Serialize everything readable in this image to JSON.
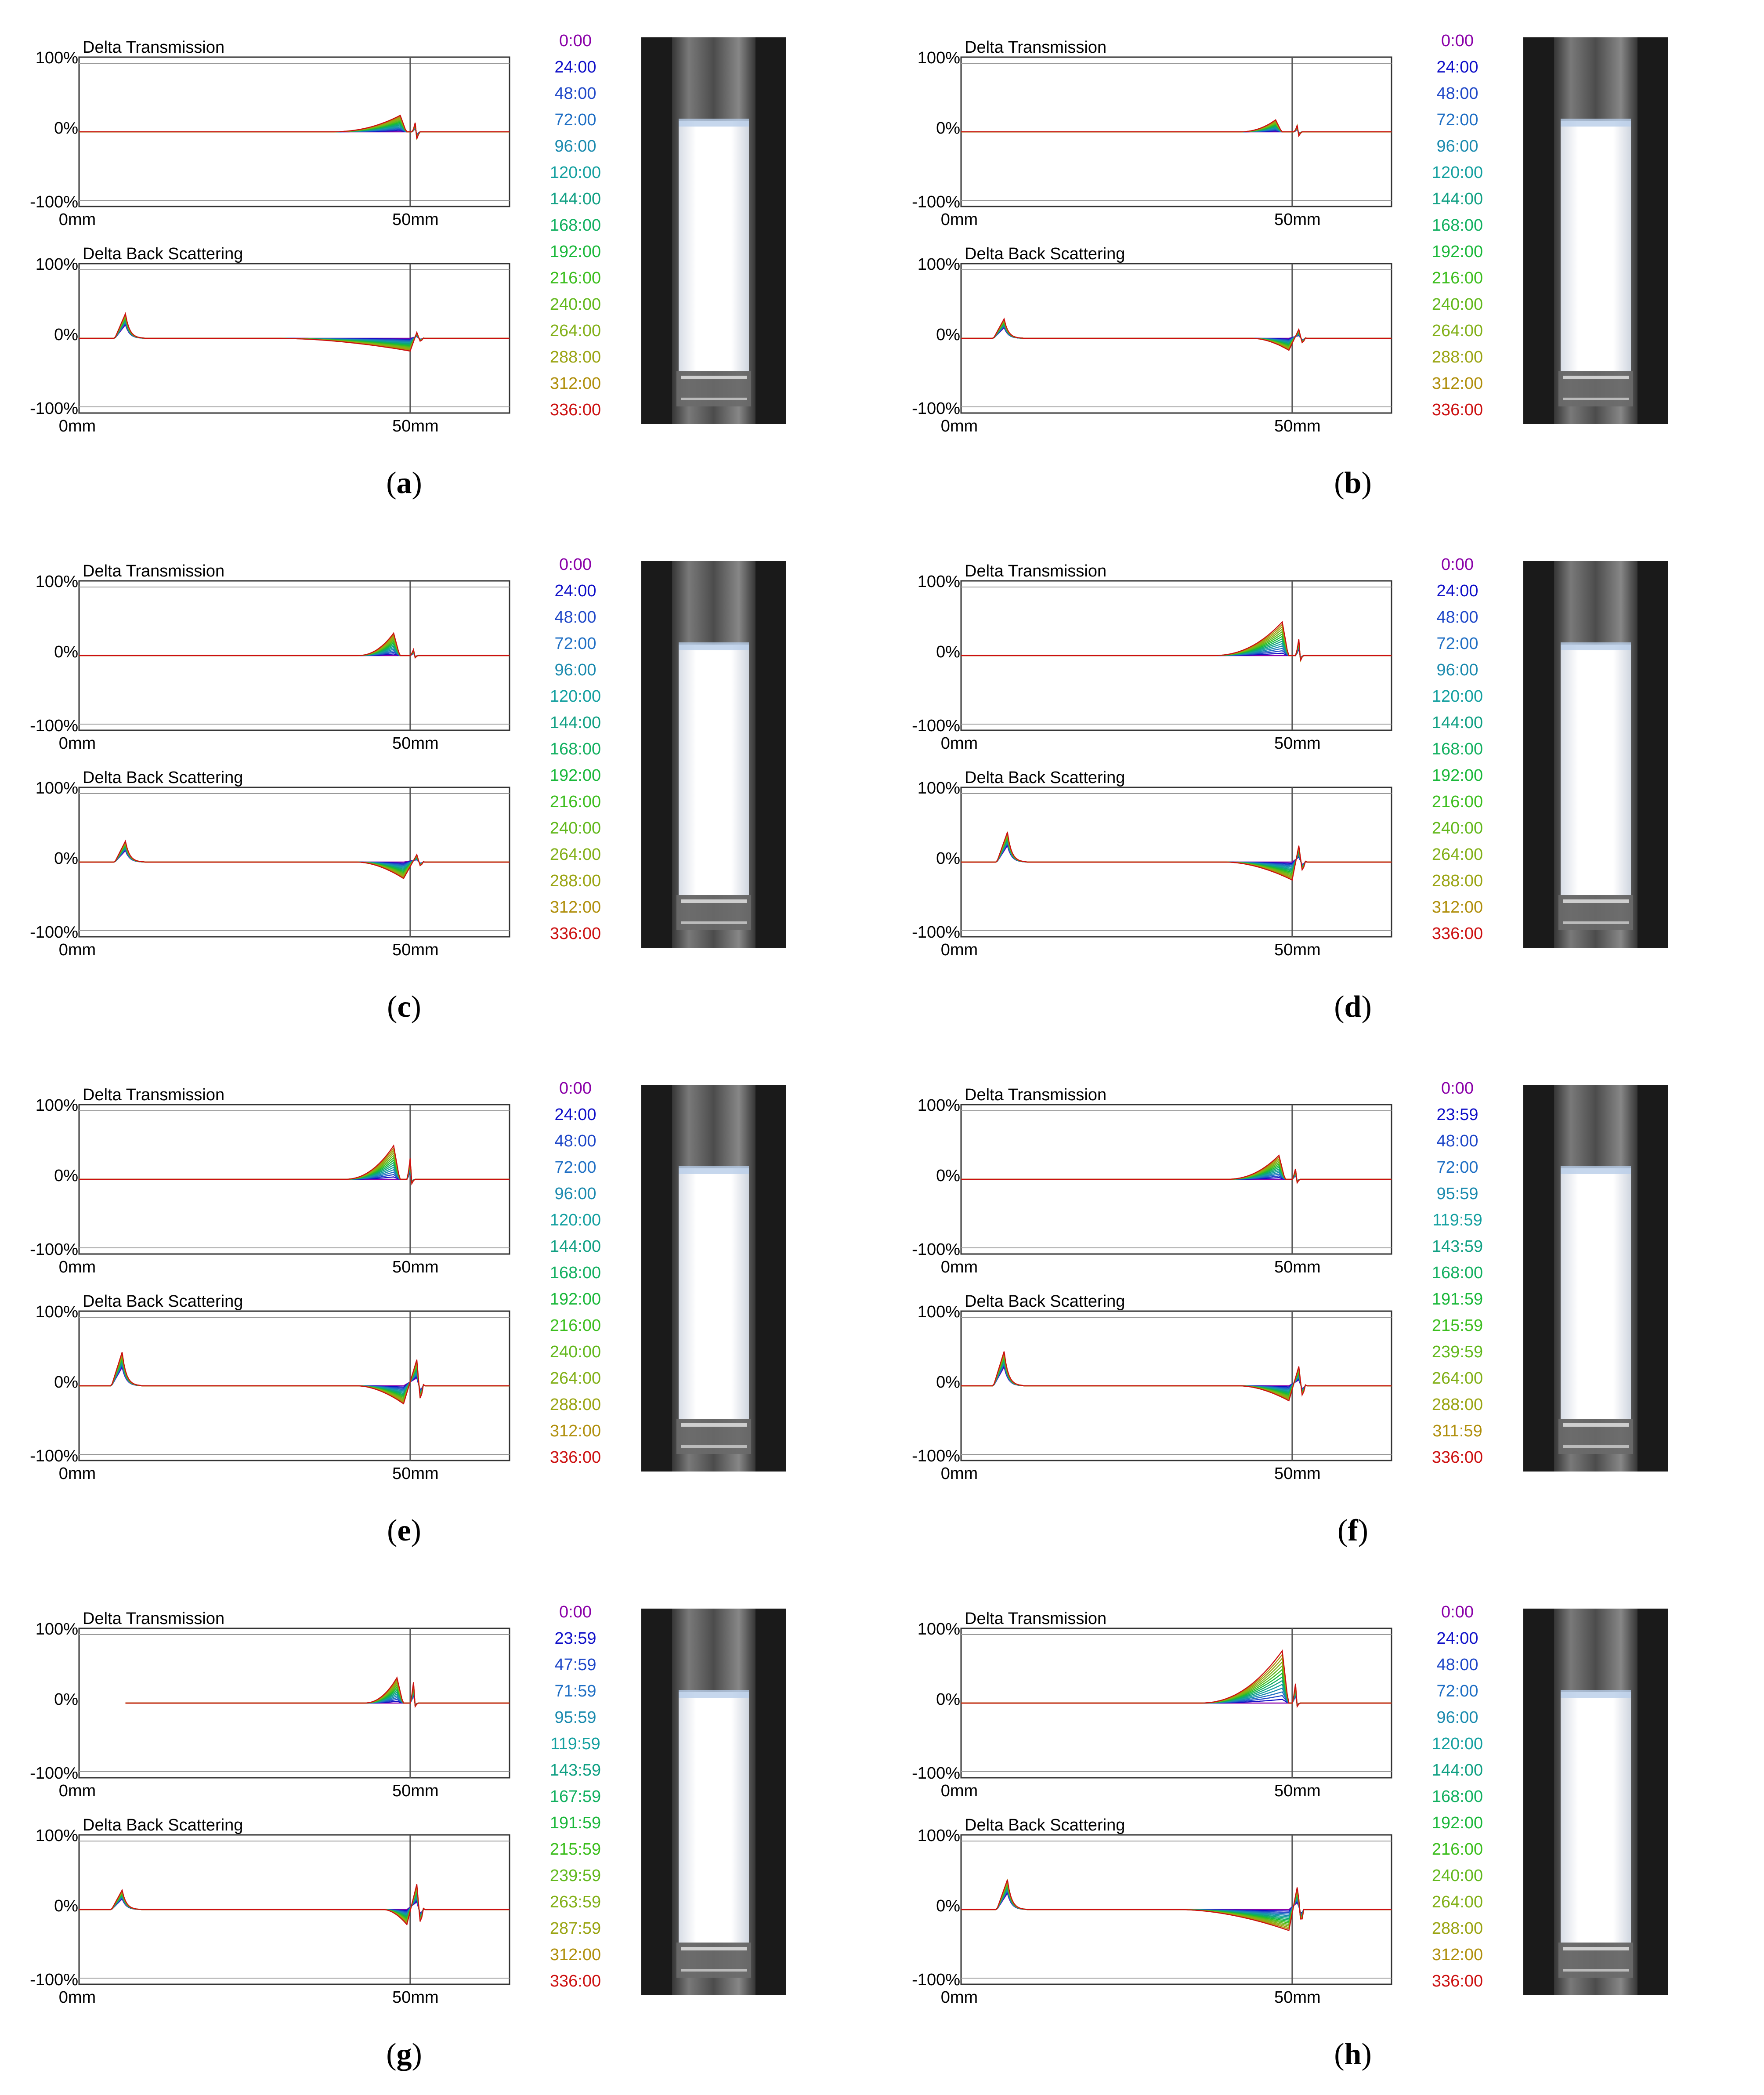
{
  "axes_text": {
    "transmission_title": "Delta Transmission",
    "backscatter_title": "Delta Back Scattering",
    "y_top": "100%",
    "y_zero": "0%",
    "y_bottom": "-100%",
    "x_start": "0mm",
    "x_mark": "50mm"
  },
  "colors": {
    "series": [
      "#8a00a8",
      "#1010c8",
      "#1f48c8",
      "#1f6fc4",
      "#1a8aae",
      "#14a0a0",
      "#10a083",
      "#12b060",
      "#1ab83a",
      "#3cbe1e",
      "#62b81c",
      "#82b018",
      "#9aa412",
      "#b08f0c",
      "#cc1010"
    ]
  },
  "chart_data": [
    {
      "type": "line",
      "panel": "a",
      "legend": [
        "0:00",
        "24:00",
        "48:00",
        "72:00",
        "96:00",
        "120:00",
        "144:00",
        "168:00",
        "192:00",
        "216:00",
        "240:00",
        "264:00",
        "288:00",
        "312:00",
        "336:00"
      ],
      "xlim": [
        0,
        65
      ],
      "ylim": [
        -100,
        100
      ],
      "transmission": {
        "flat_start": 0,
        "growth_start": 38,
        "peak_x": 48.5,
        "peak_y": 22,
        "spike_x": 50.8,
        "spike_up": 14,
        "spike_down": -14
      },
      "backscattering": {
        "peak_x": 7,
        "peak_y": 33,
        "drop_start": 30,
        "dip_x": 50,
        "dip_y": -17,
        "spike_x": 51,
        "spike_y": 8
      }
    },
    {
      "type": "line",
      "panel": "b",
      "legend": [
        "0:00",
        "24:00",
        "48:00",
        "72:00",
        "96:00",
        "120:00",
        "144:00",
        "168:00",
        "192:00",
        "216:00",
        "240:00",
        "264:00",
        "288:00",
        "312:00",
        "336:00"
      ],
      "xlim": [
        0,
        65
      ],
      "ylim": [
        -100,
        100
      ],
      "transmission": {
        "flat_start": 0,
        "growth_start": 42,
        "peak_x": 47.5,
        "peak_y": 16,
        "spike_x": 50.8,
        "spike_up": 10,
        "spike_down": -8
      },
      "backscattering": {
        "peak_x": 6.5,
        "peak_y": 26,
        "drop_start": 44,
        "dip_x": 49.5,
        "dip_y": -16,
        "spike_x": 51,
        "spike_y": 12
      }
    },
    {
      "type": "line",
      "panel": "c",
      "legend": [
        "0:00",
        "24:00",
        "48:00",
        "72:00",
        "96:00",
        "120:00",
        "144:00",
        "168:00",
        "192:00",
        "216:00",
        "240:00",
        "264:00",
        "288:00",
        "312:00",
        "336:00"
      ],
      "xlim": [
        0,
        65
      ],
      "ylim": [
        -100,
        100
      ],
      "transmission": {
        "flat_start": 0,
        "growth_start": 42,
        "peak_x": 47.5,
        "peak_y": 30,
        "spike_x": 50.5,
        "spike_up": 8,
        "spike_down": -5
      },
      "backscattering": {
        "peak_x": 7,
        "peak_y": 28,
        "drop_start": 42,
        "dip_x": 49,
        "dip_y": -22,
        "spike_x": 51,
        "spike_y": 10
      }
    },
    {
      "type": "line",
      "panel": "d",
      "legend": [
        "0:00",
        "24:00",
        "48:00",
        "72:00",
        "96:00",
        "120:00",
        "144:00",
        "168:00",
        "192:00",
        "216:00",
        "240:00",
        "264:00",
        "288:00",
        "312:00",
        "336:00"
      ],
      "xlim": [
        0,
        65
      ],
      "ylim": [
        -100,
        100
      ],
      "transmission": {
        "flat_start": 0,
        "growth_start": 38,
        "peak_x": 48.5,
        "peak_y": 45,
        "spike_x": 51,
        "spike_up": 22,
        "spike_down": -12
      },
      "backscattering": {
        "peak_x": 7,
        "peak_y": 40,
        "drop_start": 40,
        "dip_x": 50,
        "dip_y": -24,
        "spike_x": 51,
        "spike_y": 22
      }
    },
    {
      "type": "line",
      "panel": "e",
      "legend": [
        "0:00",
        "24:00",
        "48:00",
        "72:00",
        "96:00",
        "120:00",
        "144:00",
        "168:00",
        "192:00",
        "216:00",
        "240:00",
        "264:00",
        "288:00",
        "312:00",
        "336:00"
      ],
      "xlim": [
        0,
        65
      ],
      "ylim": [
        -100,
        100
      ],
      "transmission": {
        "flat_start": 0,
        "growth_start": 40,
        "peak_x": 47.5,
        "peak_y": 45,
        "spike_x": 50,
        "spike_up": 28,
        "spike_down": -10
      },
      "backscattering": {
        "peak_x": 6.5,
        "peak_y": 45,
        "drop_start": 42,
        "dip_x": 49,
        "dip_y": -24,
        "spike_x": 51,
        "spike_y": 35
      }
    },
    {
      "type": "line",
      "panel": "f",
      "legend": [
        "0:00",
        "23:59",
        "48:00",
        "72:00",
        "95:59",
        "119:59",
        "143:59",
        "168:00",
        "191:59",
        "215:59",
        "239:59",
        "264:00",
        "288:00",
        "311:59",
        "336:00"
      ],
      "xlim": [
        0,
        65
      ],
      "ylim": [
        -100,
        100
      ],
      "transmission": {
        "flat_start": 0,
        "growth_start": 40,
        "peak_x": 48,
        "peak_y": 32,
        "spike_x": 50.5,
        "spike_up": 14,
        "spike_down": -8
      },
      "backscattering": {
        "peak_x": 6.5,
        "peak_y": 46,
        "drop_start": 42,
        "dip_x": 49.5,
        "dip_y": -20,
        "spike_x": 51,
        "spike_y": 26
      }
    },
    {
      "type": "line",
      "panel": "g",
      "legend": [
        "0:00",
        "23:59",
        "47:59",
        "71:59",
        "95:59",
        "119:59",
        "143:59",
        "167:59",
        "191:59",
        "215:59",
        "239:59",
        "263:59",
        "287:59",
        "312:00",
        "336:00"
      ],
      "xlim": [
        0,
        65
      ],
      "ylim": [
        -100,
        100
      ],
      "transmission": {
        "flat_start": 7,
        "growth_start": 43,
        "peak_x": 48,
        "peak_y": 34,
        "spike_x": 50.5,
        "spike_up": 28,
        "spike_down": -8
      },
      "backscattering": {
        "peak_x": 6.5,
        "peak_y": 26,
        "drop_start": 46,
        "dip_x": 49.5,
        "dip_y": -20,
        "spike_x": 51,
        "spike_y": 34
      }
    },
    {
      "type": "line",
      "panel": "h",
      "legend": [
        "0:00",
        "24:00",
        "48:00",
        "72:00",
        "96:00",
        "120:00",
        "144:00",
        "168:00",
        "192:00",
        "216:00",
        "240:00",
        "264:00",
        "288:00",
        "312:00",
        "336:00"
      ],
      "xlim": [
        0,
        65
      ],
      "ylim": [
        -100,
        100
      ],
      "transmission": {
        "flat_start": 0,
        "growth_start": 36,
        "peak_x": 48.5,
        "peak_y": 70,
        "spike_x": 50.5,
        "spike_up": 26,
        "spike_down": -8
      },
      "backscattering": {
        "peak_x": 7,
        "peak_y": 40,
        "drop_start": 33,
        "dip_x": 49.5,
        "dip_y": -28,
        "spike_x": 50.8,
        "spike_y": 32
      }
    }
  ],
  "panels": [
    {
      "id": "a",
      "label": "a"
    },
    {
      "id": "b",
      "label": "b"
    },
    {
      "id": "c",
      "label": "c"
    },
    {
      "id": "d",
      "label": "d"
    },
    {
      "id": "e",
      "label": "e"
    },
    {
      "id": "f",
      "label": "f"
    },
    {
      "id": "g",
      "label": "g"
    },
    {
      "id": "h",
      "label": "h"
    }
  ]
}
